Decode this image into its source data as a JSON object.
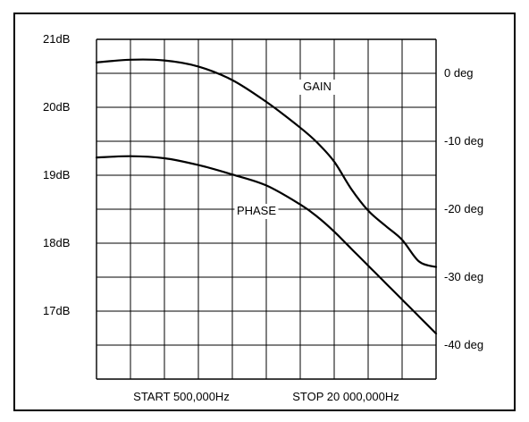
{
  "chart_data": {
    "type": "line",
    "x_start_label": "START 500,000Hz",
    "x_stop_label": "STOP 20 000,000Hz",
    "x_divisions": 10,
    "left_axis": {
      "unit": "dB",
      "ylim": [
        16,
        21
      ],
      "tick_values": [
        17,
        18,
        19,
        20,
        21
      ],
      "tick_labels": [
        "17dB",
        "18dB",
        "19dB",
        "20dB",
        "21dB"
      ]
    },
    "right_axis": {
      "unit": "deg",
      "ylim": [
        -45,
        5
      ],
      "tick_values": [
        0,
        -10,
        -20,
        -30,
        -40
      ],
      "tick_labels": [
        "0 deg",
        "-10 deg",
        "-20 deg",
        "-30 deg",
        "-40 deg"
      ]
    },
    "grid": true,
    "series": [
      {
        "name": "GAIN",
        "axis": "left",
        "x_div": [
          0,
          1,
          2,
          3,
          4,
          5,
          6,
          6.5,
          7,
          7.5,
          8,
          8.5,
          9,
          9.5,
          10
        ],
        "values": [
          20.66,
          20.7,
          20.69,
          20.6,
          20.4,
          20.08,
          19.7,
          19.48,
          19.2,
          18.8,
          18.48,
          18.26,
          18.05,
          17.73,
          17.65
        ]
      },
      {
        "name": "PHASE",
        "axis": "right",
        "x_div": [
          0,
          1,
          2,
          3,
          4,
          5,
          6,
          6.5,
          7,
          7.5,
          8,
          8.5,
          9,
          9.5,
          10
        ],
        "values": [
          -12.4,
          -12.2,
          -12.5,
          -13.5,
          -14.9,
          -16.5,
          -19.3,
          -21.1,
          -23.3,
          -25.8,
          -28.3,
          -30.8,
          -33.3,
          -35.8,
          -38.3
        ]
      }
    ]
  }
}
